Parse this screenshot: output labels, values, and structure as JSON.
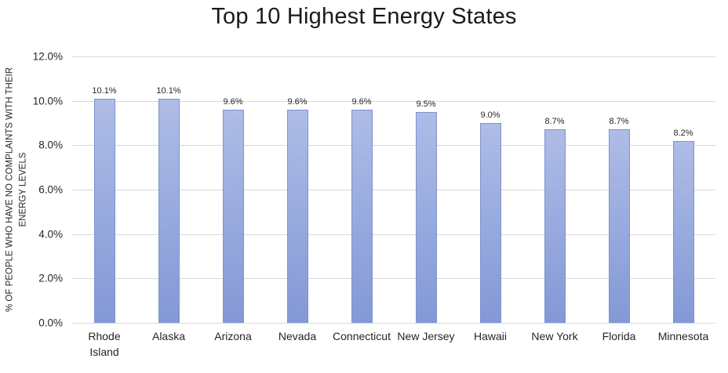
{
  "title": "Top 10 Highest Energy States",
  "chart_data": {
    "type": "bar",
    "categories": [
      "Rhode Island",
      "Alaska",
      "Arizona",
      "Nevada",
      "Connecticut",
      "New Jersey",
      "Hawaii",
      "New York",
      "Florida",
      "Minnesota"
    ],
    "values": [
      10.1,
      10.1,
      9.6,
      9.6,
      9.6,
      9.5,
      9.0,
      8.7,
      8.7,
      8.2
    ],
    "data_labels": [
      "10.1%",
      "10.1%",
      "9.6%",
      "9.6%",
      "9.6%",
      "9.5%",
      "9.0%",
      "8.7%",
      "8.7%",
      "8.2%"
    ],
    "ylabel_lines": [
      "% OF PEOPLE WHO HAVE NO COMPLAINTS WITH THEIR",
      "ENERGY LEVELS"
    ],
    "yticks": [
      "12.0%",
      "10.0%",
      "8.0%",
      "6.0%",
      "4.0%",
      "2.0%",
      "0.0%"
    ],
    "ylim": [
      0,
      12
    ],
    "grid": true,
    "legend": "none",
    "colors": {
      "bar_fill_top": "#aebce6",
      "bar_fill_bottom": "#8398d6",
      "bar_border": "#7e93cf",
      "gridline": "#d9d9d9",
      "text": "#262626",
      "title_text": "#1a1a1a",
      "background": "#ffffff"
    }
  }
}
